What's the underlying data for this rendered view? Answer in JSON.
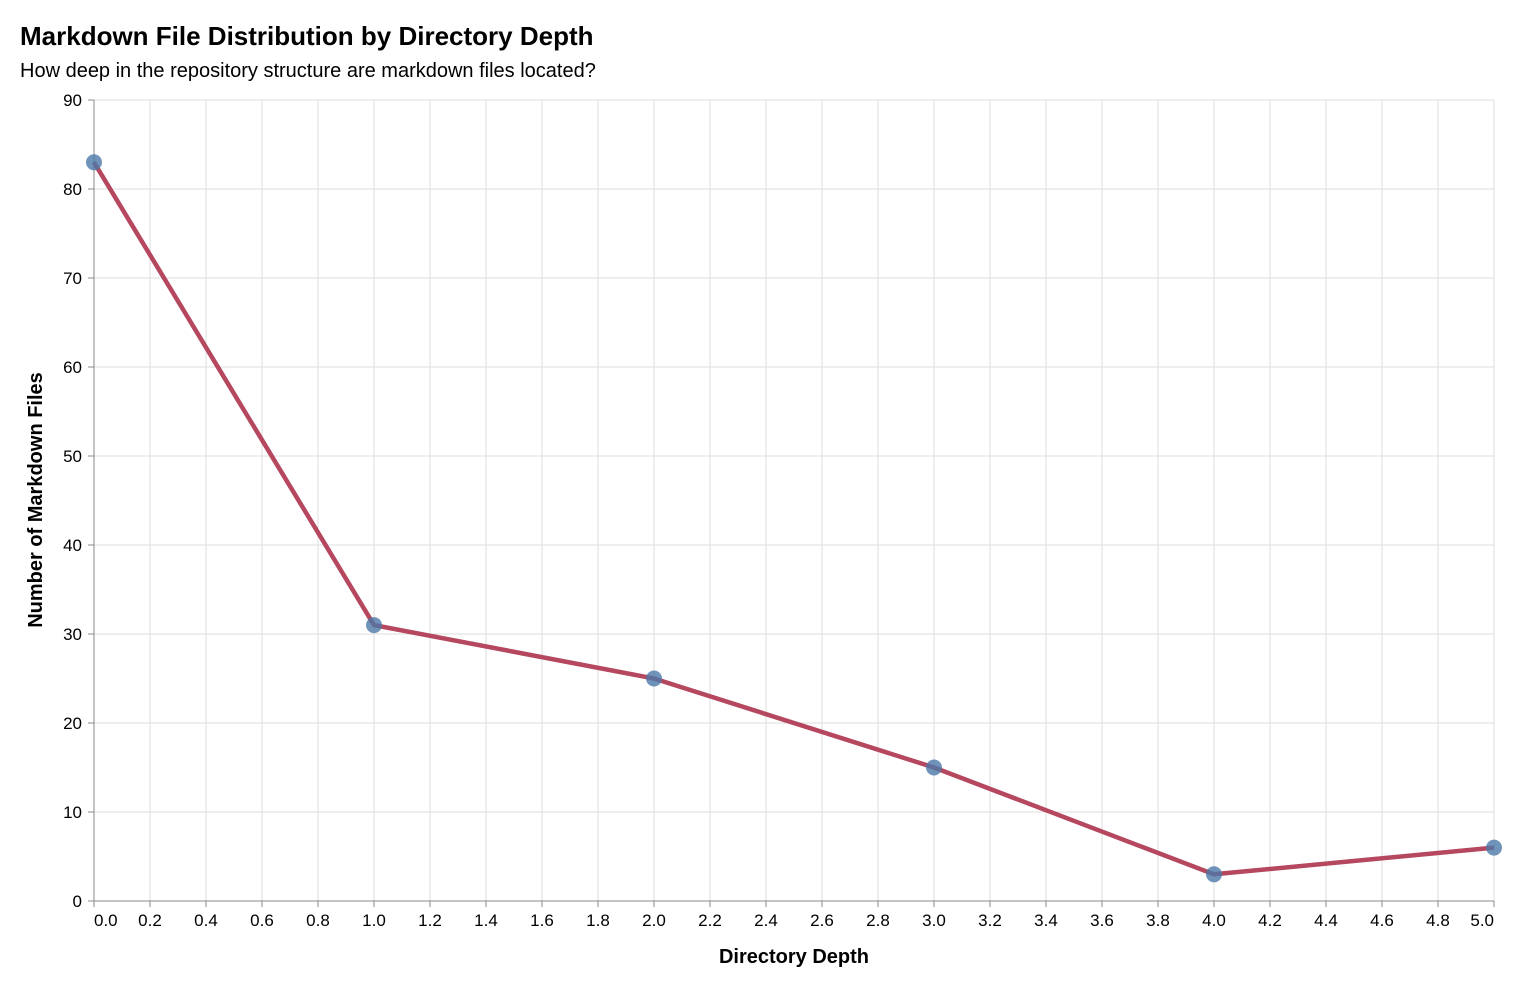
{
  "chart_data": {
    "type": "line",
    "title": "Markdown File Distribution by Directory Depth",
    "subtitle": "How deep in the repository structure are markdown files located?",
    "xlabel": "Directory Depth",
    "ylabel": "Number of Markdown Files",
    "x": [
      0,
      1,
      2,
      3,
      4,
      5
    ],
    "y": [
      83,
      31,
      25,
      15,
      3,
      6
    ],
    "xlim": [
      0,
      5
    ],
    "ylim": [
      0,
      90
    ],
    "x_ticks": [
      "0.0",
      "0.2",
      "0.4",
      "0.6",
      "0.8",
      "1.0",
      "1.2",
      "1.4",
      "1.6",
      "1.8",
      "2.0",
      "2.2",
      "2.4",
      "2.6",
      "2.8",
      "3.0",
      "3.2",
      "3.4",
      "3.6",
      "3.8",
      "4.0",
      "4.2",
      "4.4",
      "4.6",
      "4.8",
      "5.0"
    ],
    "y_ticks": [
      "0",
      "10",
      "20",
      "30",
      "40",
      "50",
      "60",
      "70",
      "80",
      "90"
    ],
    "grid": true,
    "markers": true,
    "colors": {
      "line": "#b5475f",
      "point": "#4c78a8",
      "grid": "#dddddd",
      "axis": "#888888"
    }
  }
}
